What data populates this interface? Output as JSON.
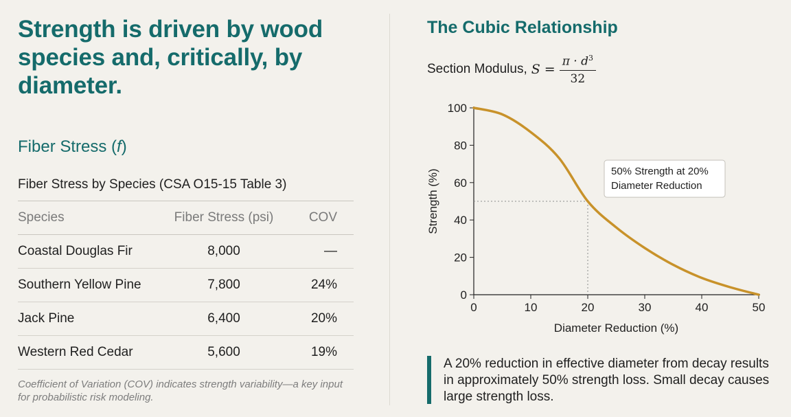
{
  "headline": "Strength is driven by wood species and, critically, by diameter.",
  "fiber_stress": {
    "subheading": "Fiber Stress (",
    "symbol": "f",
    "subheading_end": ")",
    "table_title": "Fiber Stress by Species (CSA O15-15 Table 3)",
    "columns": [
      "Species",
      "Fiber Stress (psi)",
      "COV"
    ],
    "rows": [
      {
        "species": "Coastal Douglas Fir",
        "stress": "8,000",
        "cov": "—"
      },
      {
        "species": "Southern Yellow Pine",
        "stress": "7,800",
        "cov": "24%"
      },
      {
        "species": "Jack Pine",
        "stress": "6,400",
        "cov": "20%"
      },
      {
        "species": "Western Red Cedar",
        "stress": "5,600",
        "cov": "19%"
      }
    ],
    "footnote": "Coefficient of Variation (COV) indicates strength variability—a key input for probabilistic risk modeling."
  },
  "cubic": {
    "title": "The Cubic Relationship",
    "formula_label": "Section Modulus,",
    "formula_var": "S",
    "formula_eq": "=",
    "formula_num": "π · d",
    "formula_exp": "3",
    "formula_den": "32",
    "callout": "A 20% reduction in effective diameter from decay results in approximately 50% strength loss. Small decay causes large strength loss."
  },
  "colors": {
    "accent": "#156b6b",
    "curve": "#c8922a",
    "background": "#f3f1ec"
  },
  "chart_data": {
    "type": "line",
    "title": "",
    "xlabel": "Diameter Reduction (%)",
    "ylabel": "Strength (%)",
    "xlim": [
      0,
      50
    ],
    "ylim": [
      0,
      100
    ],
    "x_ticks": [
      0,
      10,
      20,
      30,
      40,
      50
    ],
    "y_ticks": [
      0,
      20,
      40,
      60,
      80,
      100
    ],
    "grid": false,
    "series": [
      {
        "name": "",
        "x": [
          0,
          5,
          10,
          15,
          20,
          25,
          30,
          35,
          40,
          45,
          50
        ],
        "values": [
          100,
          96.5,
          87,
          73,
          50,
          36,
          25,
          16,
          9,
          4,
          0
        ]
      }
    ],
    "annotation": {
      "x": 20,
      "y": 50,
      "text_line1": "50% Strength at 20%",
      "text_line2": "Diameter Reduction"
    }
  }
}
